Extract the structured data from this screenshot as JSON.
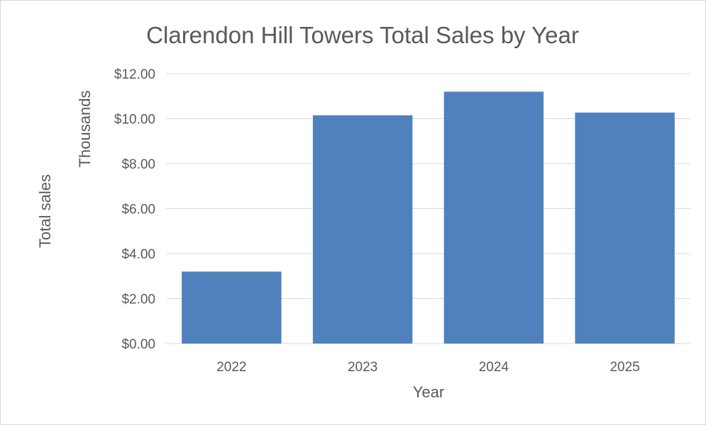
{
  "chart_data": {
    "type": "bar",
    "title": "Clarendon Hill Towers Total Sales by Year",
    "xlabel": "Year",
    "ylabel": "Total sales",
    "display_units_label": "Thousands",
    "categories": [
      "2022",
      "2023",
      "2024",
      "2025"
    ],
    "values": [
      3.2,
      10.15,
      11.2,
      10.27
    ],
    "ylim": [
      0,
      12
    ],
    "y_ticks": [
      0,
      2,
      4,
      6,
      8,
      10,
      12
    ],
    "y_tick_labels": [
      "$0.00",
      "$2.00",
      "$4.00",
      "$6.00",
      "$8.00",
      "$10.00",
      "$12.00"
    ],
    "grid": true,
    "legend": "none",
    "bar_color": "#4f81bd",
    "text_color": "#595959",
    "grid_color": "#d9d9d9"
  }
}
